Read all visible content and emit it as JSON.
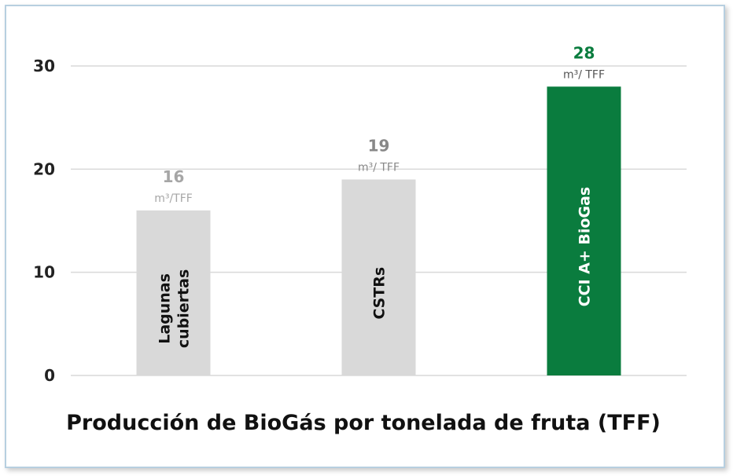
{
  "chart_data": {
    "type": "bar",
    "title": "Producción de BioGás por tonelada de fruta (TFF)",
    "xlabel": "",
    "ylabel": "",
    "ylim": [
      0,
      30
    ],
    "yticks": [
      "0",
      "10",
      "20",
      "30"
    ],
    "grid": true,
    "categories": [
      [
        "Lagunas",
        "cubiertas"
      ],
      [
        "CSTRs"
      ],
      [
        "CCI A+ BioGas"
      ]
    ],
    "values": [
      16,
      19,
      28
    ],
    "value_labels": [
      "16",
      "19",
      "28"
    ],
    "unit_labels": [
      "m³/TFF",
      "m³/ TFF",
      "m³/ TFF"
    ],
    "colors": [
      "#d9d9d9",
      "#d9d9d9",
      "#0a7c3e"
    ],
    "label_colors": [
      "#a6a6a6",
      "#888888",
      "#0a7c3e"
    ],
    "bar_text_colors": [
      "#111111",
      "#111111",
      "#ffffff"
    ]
  }
}
